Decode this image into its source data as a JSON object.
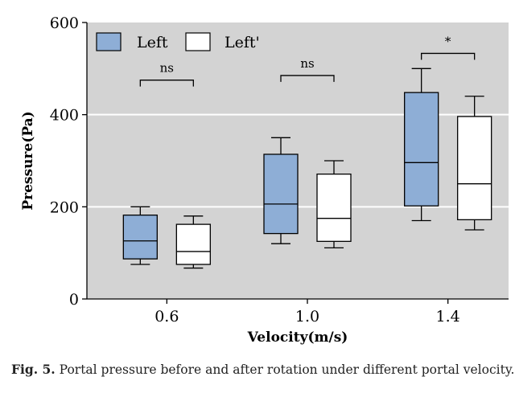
{
  "chart_data": {
    "type": "boxplot",
    "categories": [
      "0.6",
      "1.0",
      "1.4"
    ],
    "xlabel": "Velocity(m/s)",
    "ylabel": "Pressure(Pa)",
    "ylim": [
      0,
      600
    ],
    "yticks": [
      0,
      200,
      400,
      600
    ],
    "grid": true,
    "background": "#d3d3d3",
    "legend_position": "top-left",
    "series": [
      {
        "name": "Left",
        "color": "#8eaed6",
        "boxes": [
          {
            "min": 75,
            "q1": 87,
            "median": 126,
            "q3": 182,
            "max": 200
          },
          {
            "min": 120,
            "q1": 142,
            "median": 206,
            "q3": 314,
            "max": 350
          },
          {
            "min": 170,
            "q1": 202,
            "median": 296,
            "q3": 448,
            "max": 500
          }
        ]
      },
      {
        "name": "Left'",
        "color": "#ffffff",
        "boxes": [
          {
            "min": 67,
            "q1": 75,
            "median": 103,
            "q3": 162,
            "max": 180
          },
          {
            "min": 111,
            "q1": 125,
            "median": 175,
            "q3": 271,
            "max": 300
          },
          {
            "min": 150,
            "q1": 172,
            "median": 250,
            "q3": 396,
            "max": 440
          }
        ]
      }
    ],
    "annotations": [
      {
        "category": "0.6",
        "text": "ns",
        "level": 475
      },
      {
        "category": "1.0",
        "text": "ns",
        "level": 485
      },
      {
        "category": "1.4",
        "text": "*",
        "level": 533
      }
    ]
  },
  "caption": {
    "label": "Fig. 5.",
    "text": "Portal pressure before and after rotation under different portal velocity."
  }
}
